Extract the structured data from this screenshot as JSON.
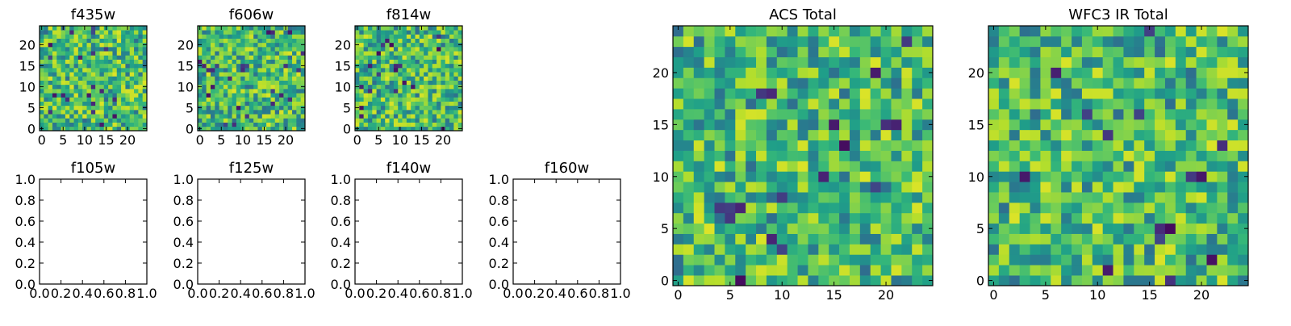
{
  "chart_data": [
    {
      "type": "heatmap",
      "title": "f435w",
      "colormap": "viridis",
      "grid": false,
      "n_cells": 25,
      "xticks": [
        "0",
        "5",
        "10",
        "15",
        "20"
      ],
      "yticks": [
        "0",
        "5",
        "10",
        "15",
        "20"
      ],
      "xlim": [
        -0.5,
        24.5
      ],
      "ylim": [
        -0.5,
        24.5
      ],
      "seed": 11
    },
    {
      "type": "heatmap",
      "title": "f606w",
      "colormap": "viridis",
      "grid": false,
      "n_cells": 25,
      "xticks": [
        "0",
        "5",
        "10",
        "15",
        "20"
      ],
      "yticks": [
        "0",
        "5",
        "10",
        "15",
        "20"
      ],
      "xlim": [
        -0.5,
        24.5
      ],
      "ylim": [
        -0.5,
        24.5
      ],
      "seed": 23
    },
    {
      "type": "heatmap",
      "title": "f814w",
      "colormap": "viridis",
      "grid": false,
      "n_cells": 25,
      "xticks": [
        "0",
        "5",
        "10",
        "15",
        "20"
      ],
      "yticks": [
        "0",
        "5",
        "10",
        "15",
        "20"
      ],
      "xlim": [
        -0.5,
        24.5
      ],
      "ylim": [
        -0.5,
        24.5
      ],
      "seed": 37
    },
    {
      "type": "empty",
      "title": "f105w",
      "xticks": [
        "0.0",
        "0.2",
        "0.4",
        "0.6",
        "0.8",
        "1.0"
      ],
      "yticks": [
        "0.0",
        "0.2",
        "0.4",
        "0.6",
        "0.8",
        "1.0"
      ],
      "xlim": [
        0,
        1
      ],
      "ylim": [
        0,
        1
      ]
    },
    {
      "type": "empty",
      "title": "f125w",
      "xticks": [
        "0.0",
        "0.2",
        "0.4",
        "0.6",
        "0.8",
        "1.0"
      ],
      "yticks": [
        "0.0",
        "0.2",
        "0.4",
        "0.6",
        "0.8",
        "1.0"
      ],
      "xlim": [
        0,
        1
      ],
      "ylim": [
        0,
        1
      ]
    },
    {
      "type": "empty",
      "title": "f140w",
      "xticks": [
        "0.0",
        "0.2",
        "0.4",
        "0.6",
        "0.8",
        "1.0"
      ],
      "yticks": [
        "0.0",
        "0.2",
        "0.4",
        "0.6",
        "0.8",
        "1.0"
      ],
      "xlim": [
        0,
        1
      ],
      "ylim": [
        0,
        1
      ]
    },
    {
      "type": "empty",
      "title": "f160w",
      "xticks": [
        "0.0",
        "0.2",
        "0.4",
        "0.6",
        "0.8",
        "1.0"
      ],
      "yticks": [
        "0.0",
        "0.2",
        "0.4",
        "0.6",
        "0.8",
        "1.0"
      ],
      "xlim": [
        0,
        1
      ],
      "ylim": [
        0,
        1
      ]
    },
    {
      "type": "heatmap",
      "title": "ACS Total",
      "colormap": "viridis",
      "grid": false,
      "n_cells": 25,
      "xticks": [
        "0",
        "5",
        "10",
        "15",
        "20"
      ],
      "yticks": [
        "0",
        "5",
        "10",
        "15",
        "20"
      ],
      "xlim": [
        -0.5,
        24.5
      ],
      "ylim": [
        -0.5,
        24.5
      ],
      "seed": 101
    },
    {
      "type": "heatmap",
      "title": "WFC3 IR Total",
      "colormap": "viridis",
      "grid": false,
      "n_cells": 25,
      "xticks": [
        "0",
        "5",
        "10",
        "15",
        "20"
      ],
      "yticks": [
        "0",
        "5",
        "10",
        "15",
        "20"
      ],
      "xlim": [
        -0.5,
        24.5
      ],
      "ylim": [
        -0.5,
        24.5
      ],
      "seed": 202
    }
  ]
}
